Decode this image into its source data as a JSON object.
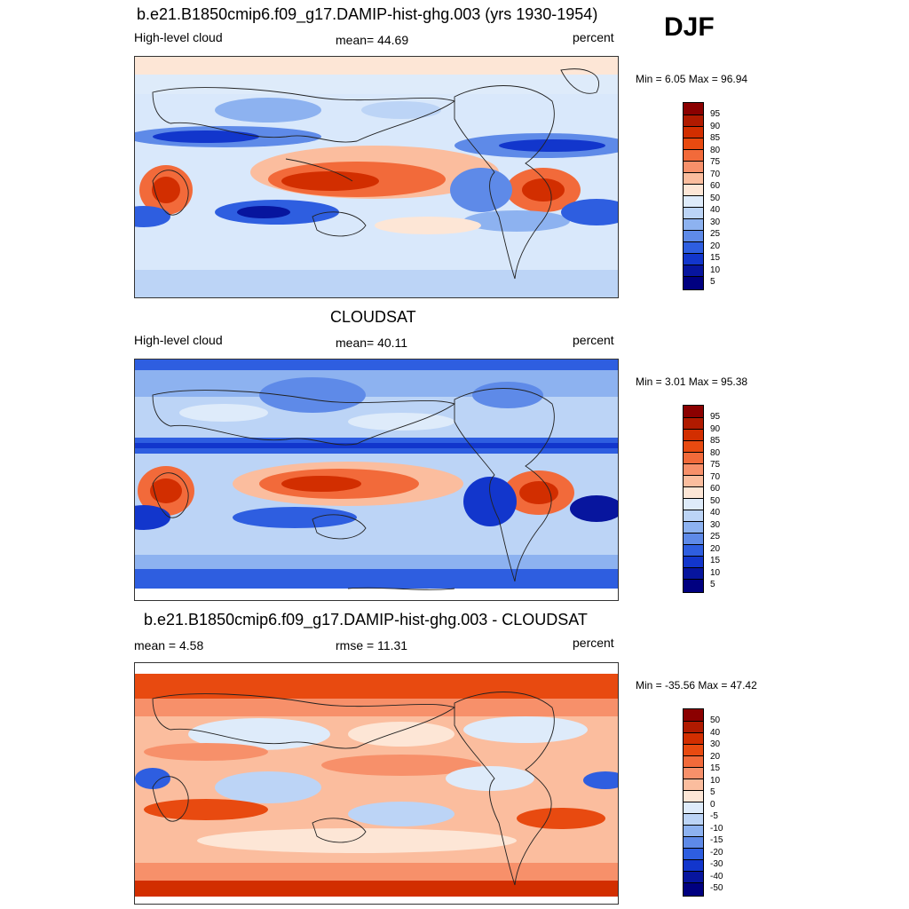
{
  "season": "DJF",
  "panels": [
    {
      "title": "b.e21.B1850cmip6.f09_g17.DAMIP-hist-ghg.003 (yrs 1930-1954)",
      "left_label": "High-level cloud",
      "center_label": "mean=  44.69",
      "right_label": "percent",
      "stats": "Min =   6.05 Max =  96.94",
      "colorbar": {
        "labels": [
          "95",
          "90",
          "85",
          "80",
          "75",
          "70",
          "60",
          "50",
          "40",
          "30",
          "25",
          "20",
          "15",
          "10",
          "5"
        ],
        "colors": [
          "#8b0000",
          "#b01a00",
          "#d22e00",
          "#e84a10",
          "#f26a3a",
          "#f7906a",
          "#fbbd9e",
          "#fde6d6",
          "#deebfa",
          "#bcd4f6",
          "#8db2f0",
          "#5e8ae8",
          "#2e5ee0",
          "#1236cc",
          "#07159e",
          "#000080"
        ]
      }
    },
    {
      "title": "CLOUDSAT",
      "left_label": "High-level cloud",
      "center_label": "mean=  40.11",
      "right_label": "percent",
      "stats": "Min =   3.01 Max =  95.38",
      "colorbar": {
        "labels": [
          "95",
          "90",
          "85",
          "80",
          "75",
          "70",
          "60",
          "50",
          "40",
          "30",
          "25",
          "20",
          "15",
          "10",
          "5"
        ],
        "colors": [
          "#8b0000",
          "#b01a00",
          "#d22e00",
          "#e84a10",
          "#f26a3a",
          "#f7906a",
          "#fbbd9e",
          "#fde6d6",
          "#deebfa",
          "#bcd4f6",
          "#8db2f0",
          "#5e8ae8",
          "#2e5ee0",
          "#1236cc",
          "#07159e",
          "#000080"
        ]
      }
    },
    {
      "title": "b.e21.B1850cmip6.f09_g17.DAMIP-hist-ghg.003 - CLOUDSAT",
      "left_label": "mean =   4.58",
      "center_label": "rmse =  11.31",
      "right_label": "percent",
      "stats": "Min = -35.56 Max =  47.42",
      "colorbar": {
        "labels": [
          "50",
          "40",
          "30",
          "20",
          "15",
          "10",
          "5",
          "0",
          "-5",
          "-10",
          "-15",
          "-20",
          "-30",
          "-40",
          "-50"
        ],
        "colors": [
          "#8b0000",
          "#b01a00",
          "#d22e00",
          "#e84a10",
          "#f26a3a",
          "#f7906a",
          "#fbbd9e",
          "#fde6d6",
          "#deebfa",
          "#bcd4f6",
          "#8db2f0",
          "#5e8ae8",
          "#2e5ee0",
          "#1236cc",
          "#07159e",
          "#000080"
        ]
      }
    }
  ]
}
